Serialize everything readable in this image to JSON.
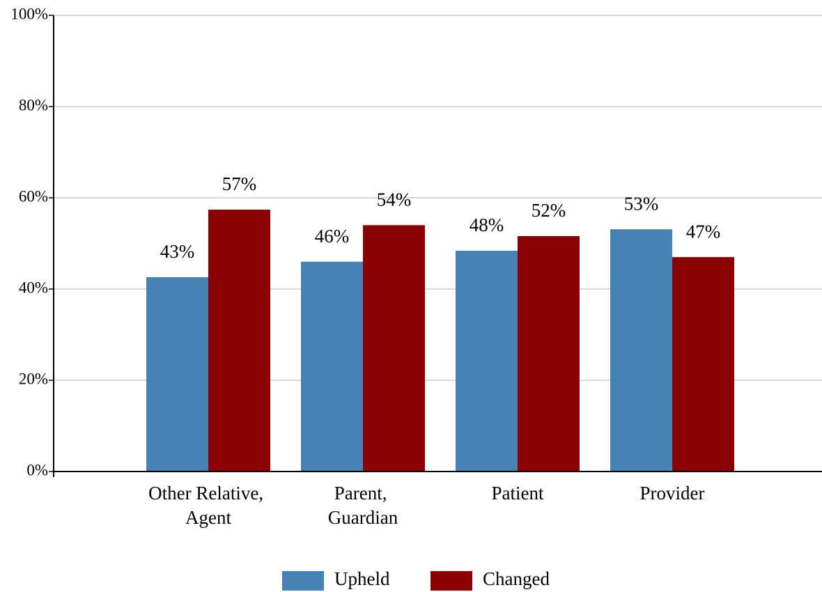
{
  "chart_data": {
    "type": "bar",
    "categories": [
      "Other Relative, Agent",
      "Parent, Guardian",
      "Patient",
      "Provider"
    ],
    "series": [
      {
        "name": "Upheld",
        "color": "#4682b4",
        "values": [
          42.6,
          46,
          48.4,
          53.1
        ],
        "value_labels": [
          "43%",
          "46%",
          "48%",
          "53%"
        ]
      },
      {
        "name": "Changed",
        "color": "#8b0000",
        "values": [
          57.4,
          54,
          51.6,
          47
        ],
        "value_labels": [
          "57%",
          "54%",
          "52%",
          "47%"
        ]
      }
    ],
    "ylim": [
      0,
      100
    ],
    "yticks": [
      {
        "value": 0,
        "label": "0%"
      },
      {
        "value": 20,
        "label": "20%"
      },
      {
        "value": 40,
        "label": "40%"
      },
      {
        "value": 60,
        "label": "60%"
      },
      {
        "value": 80,
        "label": "80%"
      },
      {
        "value": 100,
        "label": "100%"
      }
    ],
    "grid": true,
    "legend": "bottom"
  }
}
